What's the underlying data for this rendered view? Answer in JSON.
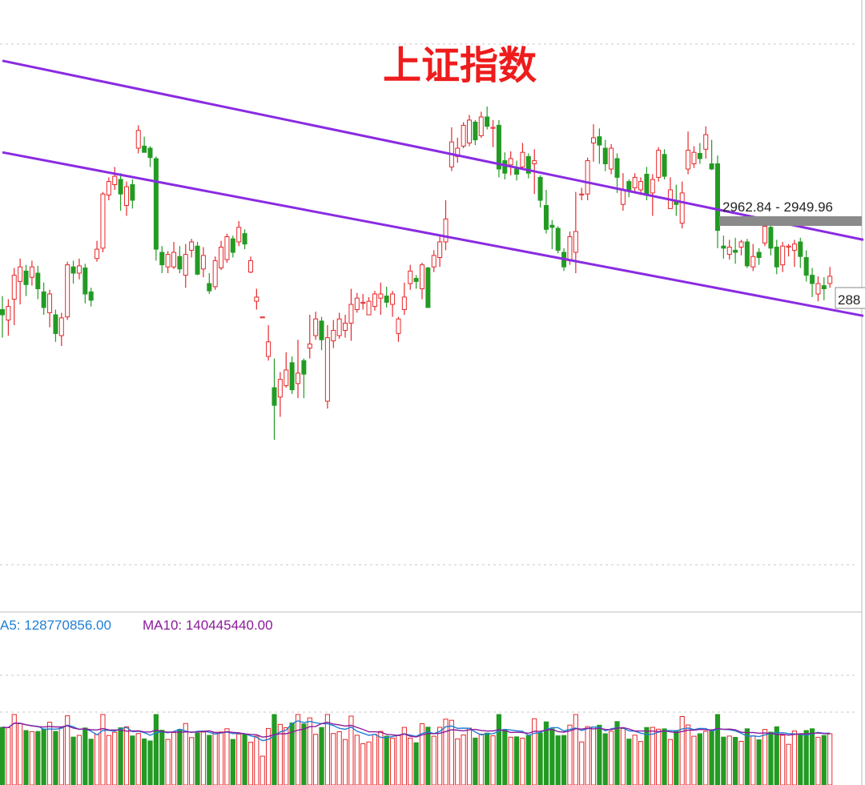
{
  "chart_data": {
    "title": "上证指数",
    "price_panel": {
      "type": "candlestick",
      "ylim": [
        2640,
        3140
      ],
      "candles": [
        [
          2885,
          2880,
          2898,
          2858
        ],
        [
          2875,
          2888,
          2895,
          2860
        ],
        [
          2895,
          2918,
          2925,
          2870
        ],
        [
          2912,
          2926,
          2934,
          2890
        ],
        [
          2922,
          2909,
          2928,
          2898
        ],
        [
          2916,
          2926,
          2932,
          2908
        ],
        [
          2920,
          2905,
          2927,
          2895
        ],
        [
          2902,
          2887,
          2911,
          2880
        ],
        [
          2882,
          2900,
          2904,
          2868
        ],
        [
          2880,
          2862,
          2885,
          2854
        ],
        [
          2860,
          2877,
          2882,
          2850
        ],
        [
          2878,
          2928,
          2931,
          2875
        ],
        [
          2926,
          2920,
          2932,
          2910
        ],
        [
          2920,
          2927,
          2934,
          2914
        ],
        [
          2925,
          2900,
          2929,
          2891
        ],
        [
          2902,
          2894,
          2906,
          2888
        ],
        [
          2934,
          2943,
          2951,
          2931
        ],
        [
          2944,
          2996,
          2998,
          2940
        ],
        [
          2995,
          3008,
          3012,
          2990
        ],
        [
          3005,
          3013,
          3022,
          3000
        ],
        [
          3010,
          2996,
          3016,
          2980
        ],
        [
          2985,
          3003,
          3008,
          2975
        ],
        [
          3005,
          2990,
          3010,
          2982
        ],
        [
          3040,
          3057,
          3062,
          3035
        ],
        [
          3042,
          3036,
          3051,
          3036
        ],
        [
          3040,
          3031,
          3042,
          3022
        ],
        [
          3030,
          2943,
          3032,
          2932
        ],
        [
          2940,
          2928,
          2946,
          2920
        ],
        [
          2926,
          2938,
          2941,
          2920
        ],
        [
          2926,
          2940,
          2950,
          2924
        ],
        [
          2936,
          2924,
          2946,
          2920
        ],
        [
          2918,
          2938,
          2948,
          2906
        ],
        [
          2942,
          2950,
          2953,
          2935
        ],
        [
          2946,
          2919,
          2950,
          2918
        ],
        [
          2924,
          2937,
          2945,
          2916
        ],
        [
          2910,
          2903,
          2920,
          2900
        ],
        [
          2907,
          2932,
          2936,
          2904
        ],
        [
          2925,
          2945,
          2951,
          2923
        ],
        [
          2933,
          2955,
          2958,
          2930
        ],
        [
          2953,
          2940,
          2956,
          2935
        ],
        [
          2950,
          2964,
          2970,
          2946
        ],
        [
          2958,
          2948,
          2962,
          2943
        ],
        [
          2921,
          2932,
          2936,
          2920
        ],
        [
          2893,
          2897,
          2905,
          2885
        ],
        [
          2878,
          2878,
          2880,
          2880
        ],
        [
          2840,
          2854,
          2870,
          2836
        ],
        [
          2810,
          2793,
          2838,
          2760
        ],
        [
          2801,
          2818,
          2825,
          2782
        ],
        [
          2812,
          2827,
          2844,
          2810
        ],
        [
          2834,
          2808,
          2840,
          2804
        ],
        [
          2814,
          2824,
          2856,
          2800
        ],
        [
          2836,
          2823,
          2838,
          2800
        ],
        [
          2848,
          2852,
          2880,
          2838
        ],
        [
          2860,
          2876,
          2883,
          2856
        ],
        [
          2874,
          2856,
          2878,
          2846
        ],
        [
          2797,
          2858,
          2870,
          2790
        ],
        [
          2855,
          2865,
          2875,
          2848
        ],
        [
          2860,
          2876,
          2882,
          2857
        ],
        [
          2865,
          2872,
          2880,
          2858
        ],
        [
          2872,
          2890,
          2905,
          2855
        ],
        [
          2885,
          2896,
          2901,
          2882
        ],
        [
          2892,
          2892,
          2900,
          2885
        ],
        [
          2880,
          2893,
          2897,
          2884
        ],
        [
          2888,
          2900,
          2903,
          2884
        ],
        [
          2896,
          2900,
          2911,
          2880
        ],
        [
          2898,
          2892,
          2907,
          2887
        ],
        [
          2890,
          2900,
          2903,
          2878
        ],
        [
          2862,
          2876,
          2878,
          2854
        ],
        [
          2885,
          2897,
          2911,
          2880
        ],
        [
          2910,
          2922,
          2928,
          2904
        ],
        [
          2915,
          2912,
          2918,
          2905
        ],
        [
          2905,
          2928,
          2930,
          2895
        ],
        [
          2925,
          2887,
          2926,
          2888
        ],
        [
          2926,
          2937,
          2942,
          2921
        ],
        [
          2935,
          2950,
          2955,
          2926
        ],
        [
          2950,
          2972,
          2990,
          2942
        ],
        [
          3022,
          3046,
          3060,
          3018
        ],
        [
          3032,
          3040,
          3050,
          3026
        ],
        [
          3042,
          3062,
          3065,
          3040
        ],
        [
          3045,
          3067,
          3072,
          3042
        ],
        [
          3065,
          3048,
          3067,
          3043
        ],
        [
          3052,
          3070,
          3075,
          3050
        ],
        [
          3070,
          3061,
          3080,
          3058
        ],
        [
          3060,
          3060,
          3067,
          3041
        ],
        [
          3062,
          3020,
          3067,
          3012
        ],
        [
          3028,
          3016,
          3036,
          3010
        ],
        [
          3024,
          3030,
          3037,
          3014
        ],
        [
          3020,
          3015,
          3028,
          3009
        ],
        [
          3022,
          3036,
          3045,
          3020
        ],
        [
          3032,
          3016,
          3035,
          3011
        ],
        [
          3025,
          3028,
          3039,
          2996
        ],
        [
          3012,
          2990,
          3014,
          2983
        ],
        [
          2985,
          2962,
          3000,
          2958
        ],
        [
          2966,
          2964,
          2971,
          2943
        ],
        [
          2963,
          2942,
          2965,
          2939
        ],
        [
          2940,
          2926,
          2944,
          2922
        ],
        [
          2932,
          2955,
          2960,
          2928
        ],
        [
          2940,
          2960,
          2998,
          2920
        ],
        [
          2996,
          2996,
          3002,
          2990
        ],
        [
          2996,
          3028,
          3031,
          2990
        ],
        [
          3045,
          3050,
          3063,
          3027
        ],
        [
          3051,
          3043,
          3059,
          3025
        ],
        [
          3040,
          3025,
          3048,
          3018
        ],
        [
          3020,
          3040,
          3044,
          3015
        ],
        [
          3030,
          3012,
          3035,
          2997
        ],
        [
          2986,
          3000,
          3016,
          2980
        ],
        [
          3008,
          3000,
          3010,
          2993
        ],
        [
          3002,
          3012,
          3016,
          2998
        ],
        [
          3000,
          3008,
          3012,
          2995
        ],
        [
          3015,
          2995,
          3022,
          2990
        ],
        [
          2997,
          3010,
          3015,
          2975
        ],
        [
          3012,
          3038,
          3041,
          3008
        ],
        [
          3034,
          3013,
          3039,
          3010
        ],
        [
          2982,
          3000,
          3012,
          2990
        ],
        [
          2990,
          2986,
          3005,
          2975
        ],
        [
          2968,
          2997,
          3008,
          2963
        ],
        [
          3020,
          3038,
          3056,
          3015
        ],
        [
          3025,
          3036,
          3042,
          3021
        ],
        [
          3035,
          3030,
          3045,
          3025
        ],
        [
          3039,
          3053,
          3061,
          3030
        ],
        [
          3025,
          3020,
          3048,
          3019
        ],
        [
          3025,
          2961,
          3033,
          2944
        ],
        [
          2946,
          2944,
          2956,
          2934
        ],
        [
          2938,
          2945,
          2952,
          2933
        ],
        [
          2942,
          2940,
          2954,
          2929
        ],
        [
          2945,
          2950,
          2952,
          2937
        ],
        [
          2950,
          2927,
          2953,
          2925
        ],
        [
          2926,
          2936,
          2948,
          2922
        ],
        [
          2940,
          2935,
          2944,
          2928
        ],
        [
          2949,
          2965,
          2972,
          2946
        ],
        [
          2964,
          2944,
          2967,
          2937
        ],
        [
          2945,
          2926,
          2952,
          2919
        ],
        [
          2928,
          2946,
          2950,
          2921
        ],
        [
          2945,
          2946,
          2948,
          2936
        ],
        [
          2942,
          2948,
          2952,
          2926
        ],
        [
          2950,
          2936,
          2954,
          2925
        ],
        [
          2935,
          2918,
          2942,
          2912
        ],
        [
          2918,
          2910,
          2925,
          2897
        ],
        [
          2900,
          2910,
          2917,
          2893
        ],
        [
          2908,
          2905,
          2916,
          2894
        ],
        [
          2910,
          2917,
          2926,
          2906
        ]
      ],
      "channel_upper": [
        [
          0,
          3124
        ],
        [
          1075,
          2952
        ]
      ],
      "channel_lower": [
        [
          0,
          3036
        ],
        [
          1075,
          2879
        ]
      ],
      "range_label": "2962.84 - 2949.96",
      "price_tag": "288"
    },
    "volume_panel": {
      "legend": [
        {
          "text": "A5: 128770856.00",
          "color": "#1f7fd6"
        },
        {
          "text": "MA10: 140445440.00",
          "color": "#8b1a9b"
        }
      ]
    }
  },
  "colors": {
    "up": "#e8272a",
    "down": "#239b23",
    "channel": "#8a2be2",
    "title": "#ee1c1c",
    "grid": "#c8c8c8",
    "marker": "#8a8a8a"
  }
}
